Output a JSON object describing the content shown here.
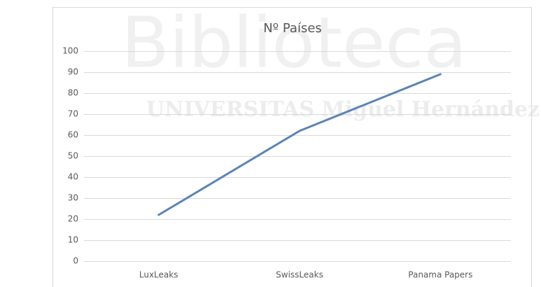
{
  "chart_data": {
    "type": "line",
    "title": "Nº Países",
    "categories": [
      "LuxLeaks",
      "SwissLeaks",
      "Panama Papers"
    ],
    "series": [
      {
        "name": "Nº Países",
        "color": "#5b83b8",
        "values": [
          22,
          62,
          89
        ]
      }
    ],
    "ylim": [
      0,
      100
    ],
    "yticks": [
      0,
      10,
      20,
      30,
      40,
      50,
      60,
      70,
      80,
      90,
      100
    ],
    "grid": true
  },
  "watermark": {
    "title": "Biblioteca",
    "subtitle": "UNIVERSITAS Miguel Hernández"
  }
}
